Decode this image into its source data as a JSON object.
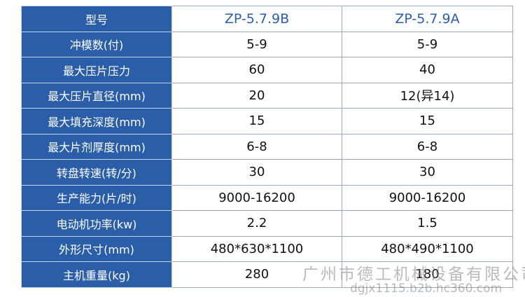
{
  "table": {
    "header": [
      "型号",
      "ZP-5.7.9B",
      "ZP-5.7.9A"
    ],
    "rows": [
      [
        "冲模数(付)",
        "5-9",
        "5-9"
      ],
      [
        "最大压片压力",
        "60",
        "40"
      ],
      [
        "最大压片直径(mm)",
        "20",
        "12(异14)"
      ],
      [
        "最大填充深度(mm)",
        "15",
        "15"
      ],
      [
        "最大片剂厚度(mm)",
        "6-8",
        "6-8"
      ],
      [
        "转盘转速(转/分)",
        "30",
        "30"
      ],
      [
        "生产能力(片/时)",
        "9000-16200",
        "9000-16200"
      ],
      [
        "电动机功率(kw)",
        "2.2",
        "1.5"
      ],
      [
        "外形尺寸(mm)",
        "480*630*1100",
        "480*490*1100"
      ],
      [
        "主机重量(kg)",
        "280",
        "180"
      ]
    ]
  },
  "watermark": {
    "company": "广州市德工机械设备有限公司",
    "site": "dgjx1115.b2b.hc360.com"
  }
}
